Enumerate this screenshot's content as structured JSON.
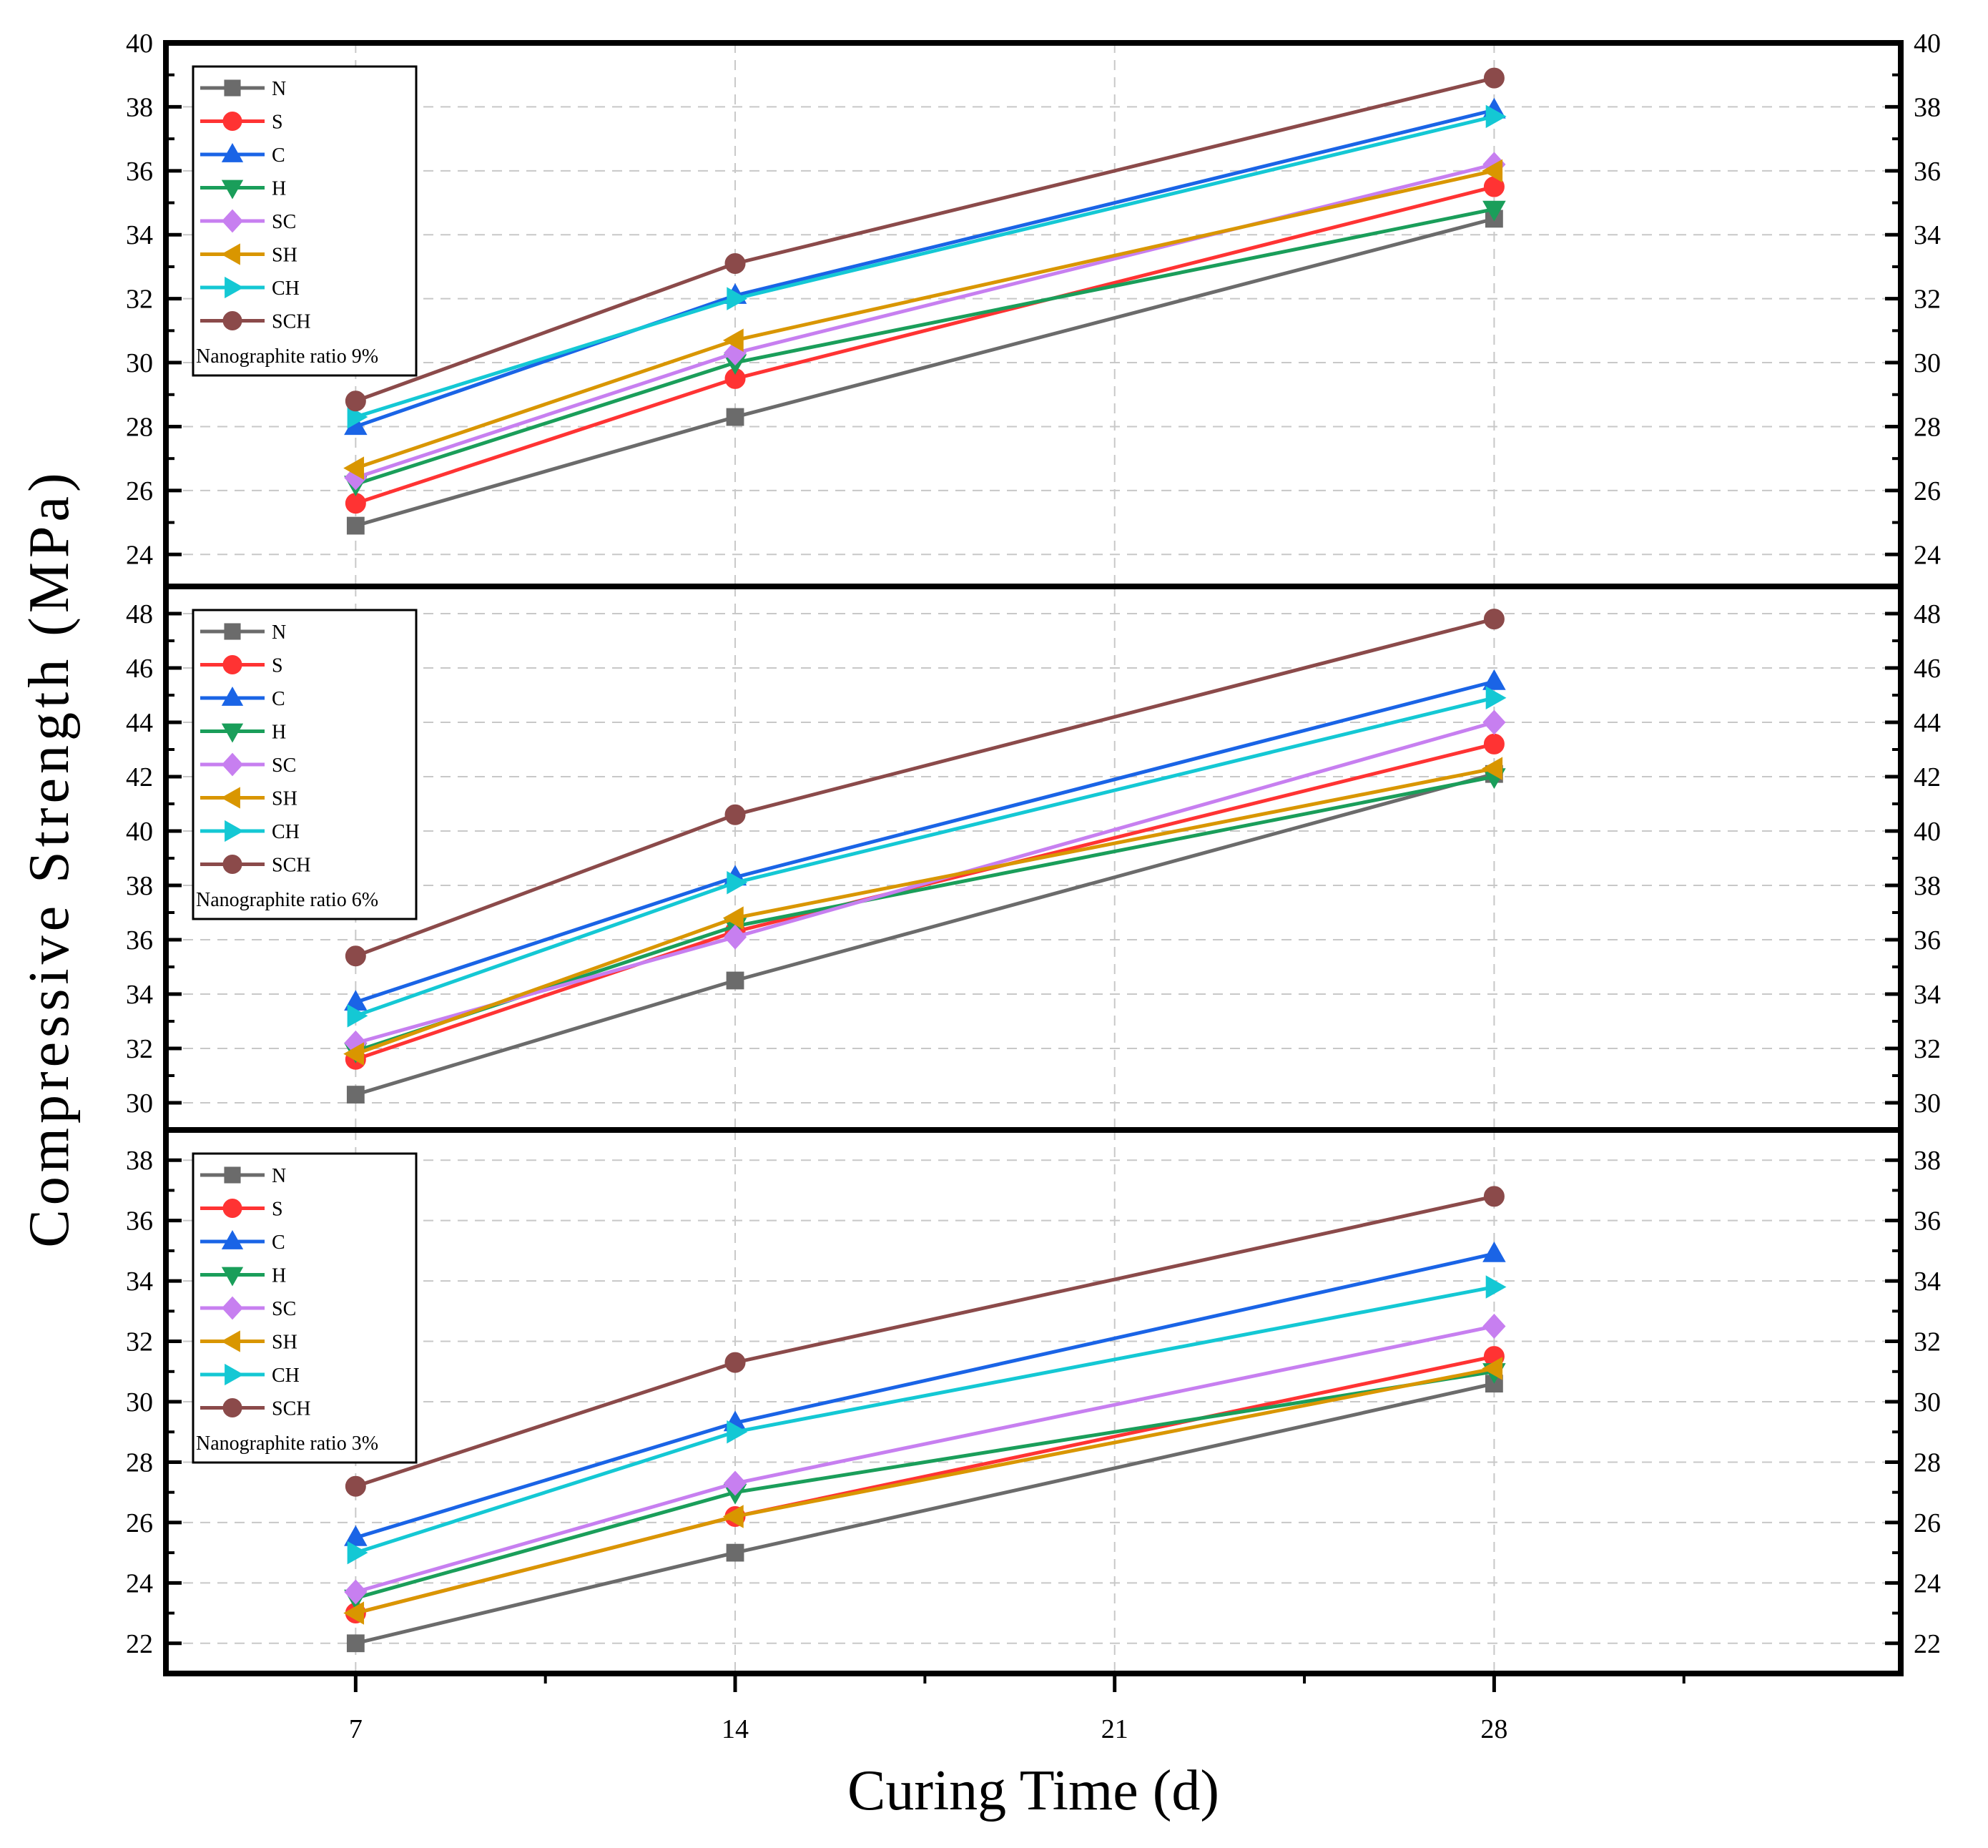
{
  "chart_data": {
    "type": "line",
    "ylabel": "Compressive Strength (MPa)",
    "xlabel": "Curing Time (d)",
    "x": [
      7,
      14,
      28
    ],
    "xticks": [
      7,
      14,
      21,
      28
    ],
    "xlim": [
      3.5,
      35.5
    ],
    "series_styles": [
      {
        "name": "N",
        "color": "#6b6b6b",
        "marker": "square"
      },
      {
        "name": "S",
        "color": "#ff3333",
        "marker": "circle"
      },
      {
        "name": "C",
        "color": "#1a64e6",
        "marker": "triangle-up"
      },
      {
        "name": "H",
        "color": "#1a9e5a",
        "marker": "triangle-down"
      },
      {
        "name": "SC",
        "color": "#c77ff0",
        "marker": "diamond"
      },
      {
        "name": "SH",
        "color": "#d99600",
        "marker": "triangle-left"
      },
      {
        "name": "CH",
        "color": "#14c8d4",
        "marker": "triangle-right"
      },
      {
        "name": "SCH",
        "color": "#8b4a4a",
        "marker": "circle"
      }
    ],
    "panels": [
      {
        "annotation": "Nanographite ratio 9%",
        "ylim": [
          23,
          40
        ],
        "yticks": [
          24,
          26,
          28,
          30,
          32,
          34,
          36,
          38,
          40
        ],
        "series": [
          {
            "name": "N",
            "values": [
              24.9,
              28.3,
              34.5
            ]
          },
          {
            "name": "S",
            "values": [
              25.6,
              29.5,
              35.5
            ]
          },
          {
            "name": "C",
            "values": [
              28.0,
              32.1,
              37.9
            ]
          },
          {
            "name": "H",
            "values": [
              26.2,
              30.0,
              34.8
            ]
          },
          {
            "name": "SC",
            "values": [
              26.4,
              30.3,
              36.2
            ]
          },
          {
            "name": "SH",
            "values": [
              26.7,
              30.7,
              36.0
            ]
          },
          {
            "name": "CH",
            "values": [
              28.3,
              32.0,
              37.7
            ]
          },
          {
            "name": "SCH",
            "values": [
              28.8,
              33.1,
              38.9
            ]
          }
        ]
      },
      {
        "annotation": "Nanographite ratio 6%",
        "ylim": [
          29,
          49
        ],
        "yticks": [
          30,
          32,
          34,
          36,
          38,
          40,
          42,
          44,
          46,
          48
        ],
        "series": [
          {
            "name": "N",
            "values": [
              30.3,
              34.5,
              42.1
            ]
          },
          {
            "name": "S",
            "values": [
              31.6,
              36.3,
              43.2
            ]
          },
          {
            "name": "C",
            "values": [
              33.7,
              38.3,
              45.5
            ]
          },
          {
            "name": "H",
            "values": [
              31.9,
              36.5,
              42.0
            ]
          },
          {
            "name": "SC",
            "values": [
              32.2,
              36.1,
              44.0
            ]
          },
          {
            "name": "SH",
            "values": [
              31.8,
              36.8,
              42.3
            ]
          },
          {
            "name": "CH",
            "values": [
              33.2,
              38.1,
              44.9
            ]
          },
          {
            "name": "SCH",
            "values": [
              35.4,
              40.6,
              47.8
            ]
          }
        ]
      },
      {
        "annotation": "Nanographite ratio 3%",
        "ylim": [
          21,
          39
        ],
        "yticks": [
          22,
          24,
          26,
          28,
          30,
          32,
          34,
          36,
          38
        ],
        "series": [
          {
            "name": "N",
            "values": [
              22.0,
              25.0,
              30.6
            ]
          },
          {
            "name": "S",
            "values": [
              23.0,
              26.2,
              31.5
            ]
          },
          {
            "name": "C",
            "values": [
              25.5,
              29.3,
              34.9
            ]
          },
          {
            "name": "H",
            "values": [
              23.5,
              27.0,
              31.0
            ]
          },
          {
            "name": "SC",
            "values": [
              23.7,
              27.3,
              32.5
            ]
          },
          {
            "name": "SH",
            "values": [
              23.0,
              26.2,
              31.1
            ]
          },
          {
            "name": "CH",
            "values": [
              25.0,
              29.0,
              33.8
            ]
          },
          {
            "name": "SCH",
            "values": [
              27.2,
              31.3,
              36.8
            ]
          }
        ]
      }
    ]
  }
}
